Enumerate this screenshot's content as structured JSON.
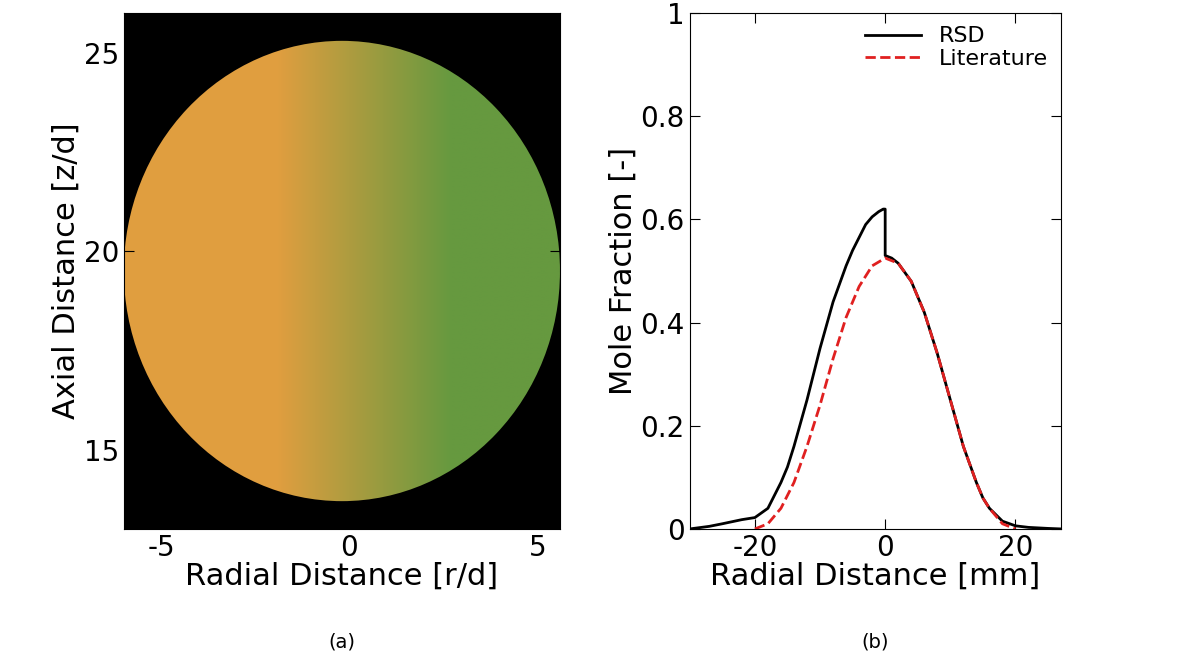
{
  "chart_data": [
    {
      "type": "image",
      "panel_label": "(a)",
      "x_label": "Radial Distance [r/d]",
      "y_label": "Axial Distance [z/d]",
      "xlim": [
        -6,
        5.6
      ],
      "ylim": [
        13,
        26
      ],
      "xticks": [
        -5,
        0,
        5
      ],
      "yticks": [
        15,
        20,
        25
      ]
    },
    {
      "type": "line",
      "panel_label": "(b)",
      "x_label": "Radial Distance [mm]",
      "y_label": "Mole Fraction [-]",
      "xlim": [
        -30,
        27
      ],
      "ylim": [
        0,
        1
      ],
      "xticks": [
        -20,
        0,
        20
      ],
      "yticks": [
        0,
        0.2,
        0.4,
        0.6,
        0.8,
        1
      ],
      "legend": "upper right",
      "series": [
        {
          "name": "RSD",
          "color": "#000000",
          "line_style": "solid",
          "x": [
            -30,
            -27,
            -25,
            -22,
            -20,
            -18,
            -16,
            -15,
            -14,
            -12,
            -10,
            -8,
            -6,
            -5,
            -4,
            -3,
            -2,
            -1,
            -0.3,
            0,
            0,
            1,
            2,
            4,
            5,
            6,
            8,
            10,
            12,
            14,
            15,
            16,
            18,
            20,
            22,
            25,
            27
          ],
          "values": [
            0,
            0.005,
            0.01,
            0.018,
            0.022,
            0.04,
            0.09,
            0.12,
            0.16,
            0.25,
            0.35,
            0.44,
            0.51,
            0.54,
            0.565,
            0.59,
            0.605,
            0.615,
            0.62,
            0.62,
            0.53,
            0.525,
            0.515,
            0.48,
            0.45,
            0.42,
            0.34,
            0.25,
            0.16,
            0.09,
            0.06,
            0.04,
            0.015,
            0.006,
            0.003,
            0.001,
            0
          ]
        },
        {
          "name": "Literature",
          "color": "#e02020",
          "line_style": "dashed",
          "x": [
            -20,
            -18,
            -16,
            -14,
            -12,
            -10,
            -8,
            -6,
            -4,
            -2,
            0,
            2,
            4,
            5,
            6,
            8,
            10,
            12,
            14,
            15,
            16,
            18,
            20
          ],
          "values": [
            0,
            0.01,
            0.04,
            0.09,
            0.16,
            0.24,
            0.33,
            0.41,
            0.47,
            0.51,
            0.525,
            0.515,
            0.48,
            0.45,
            0.42,
            0.34,
            0.25,
            0.16,
            0.09,
            0.06,
            0.04,
            0.01,
            0
          ]
        }
      ]
    }
  ]
}
